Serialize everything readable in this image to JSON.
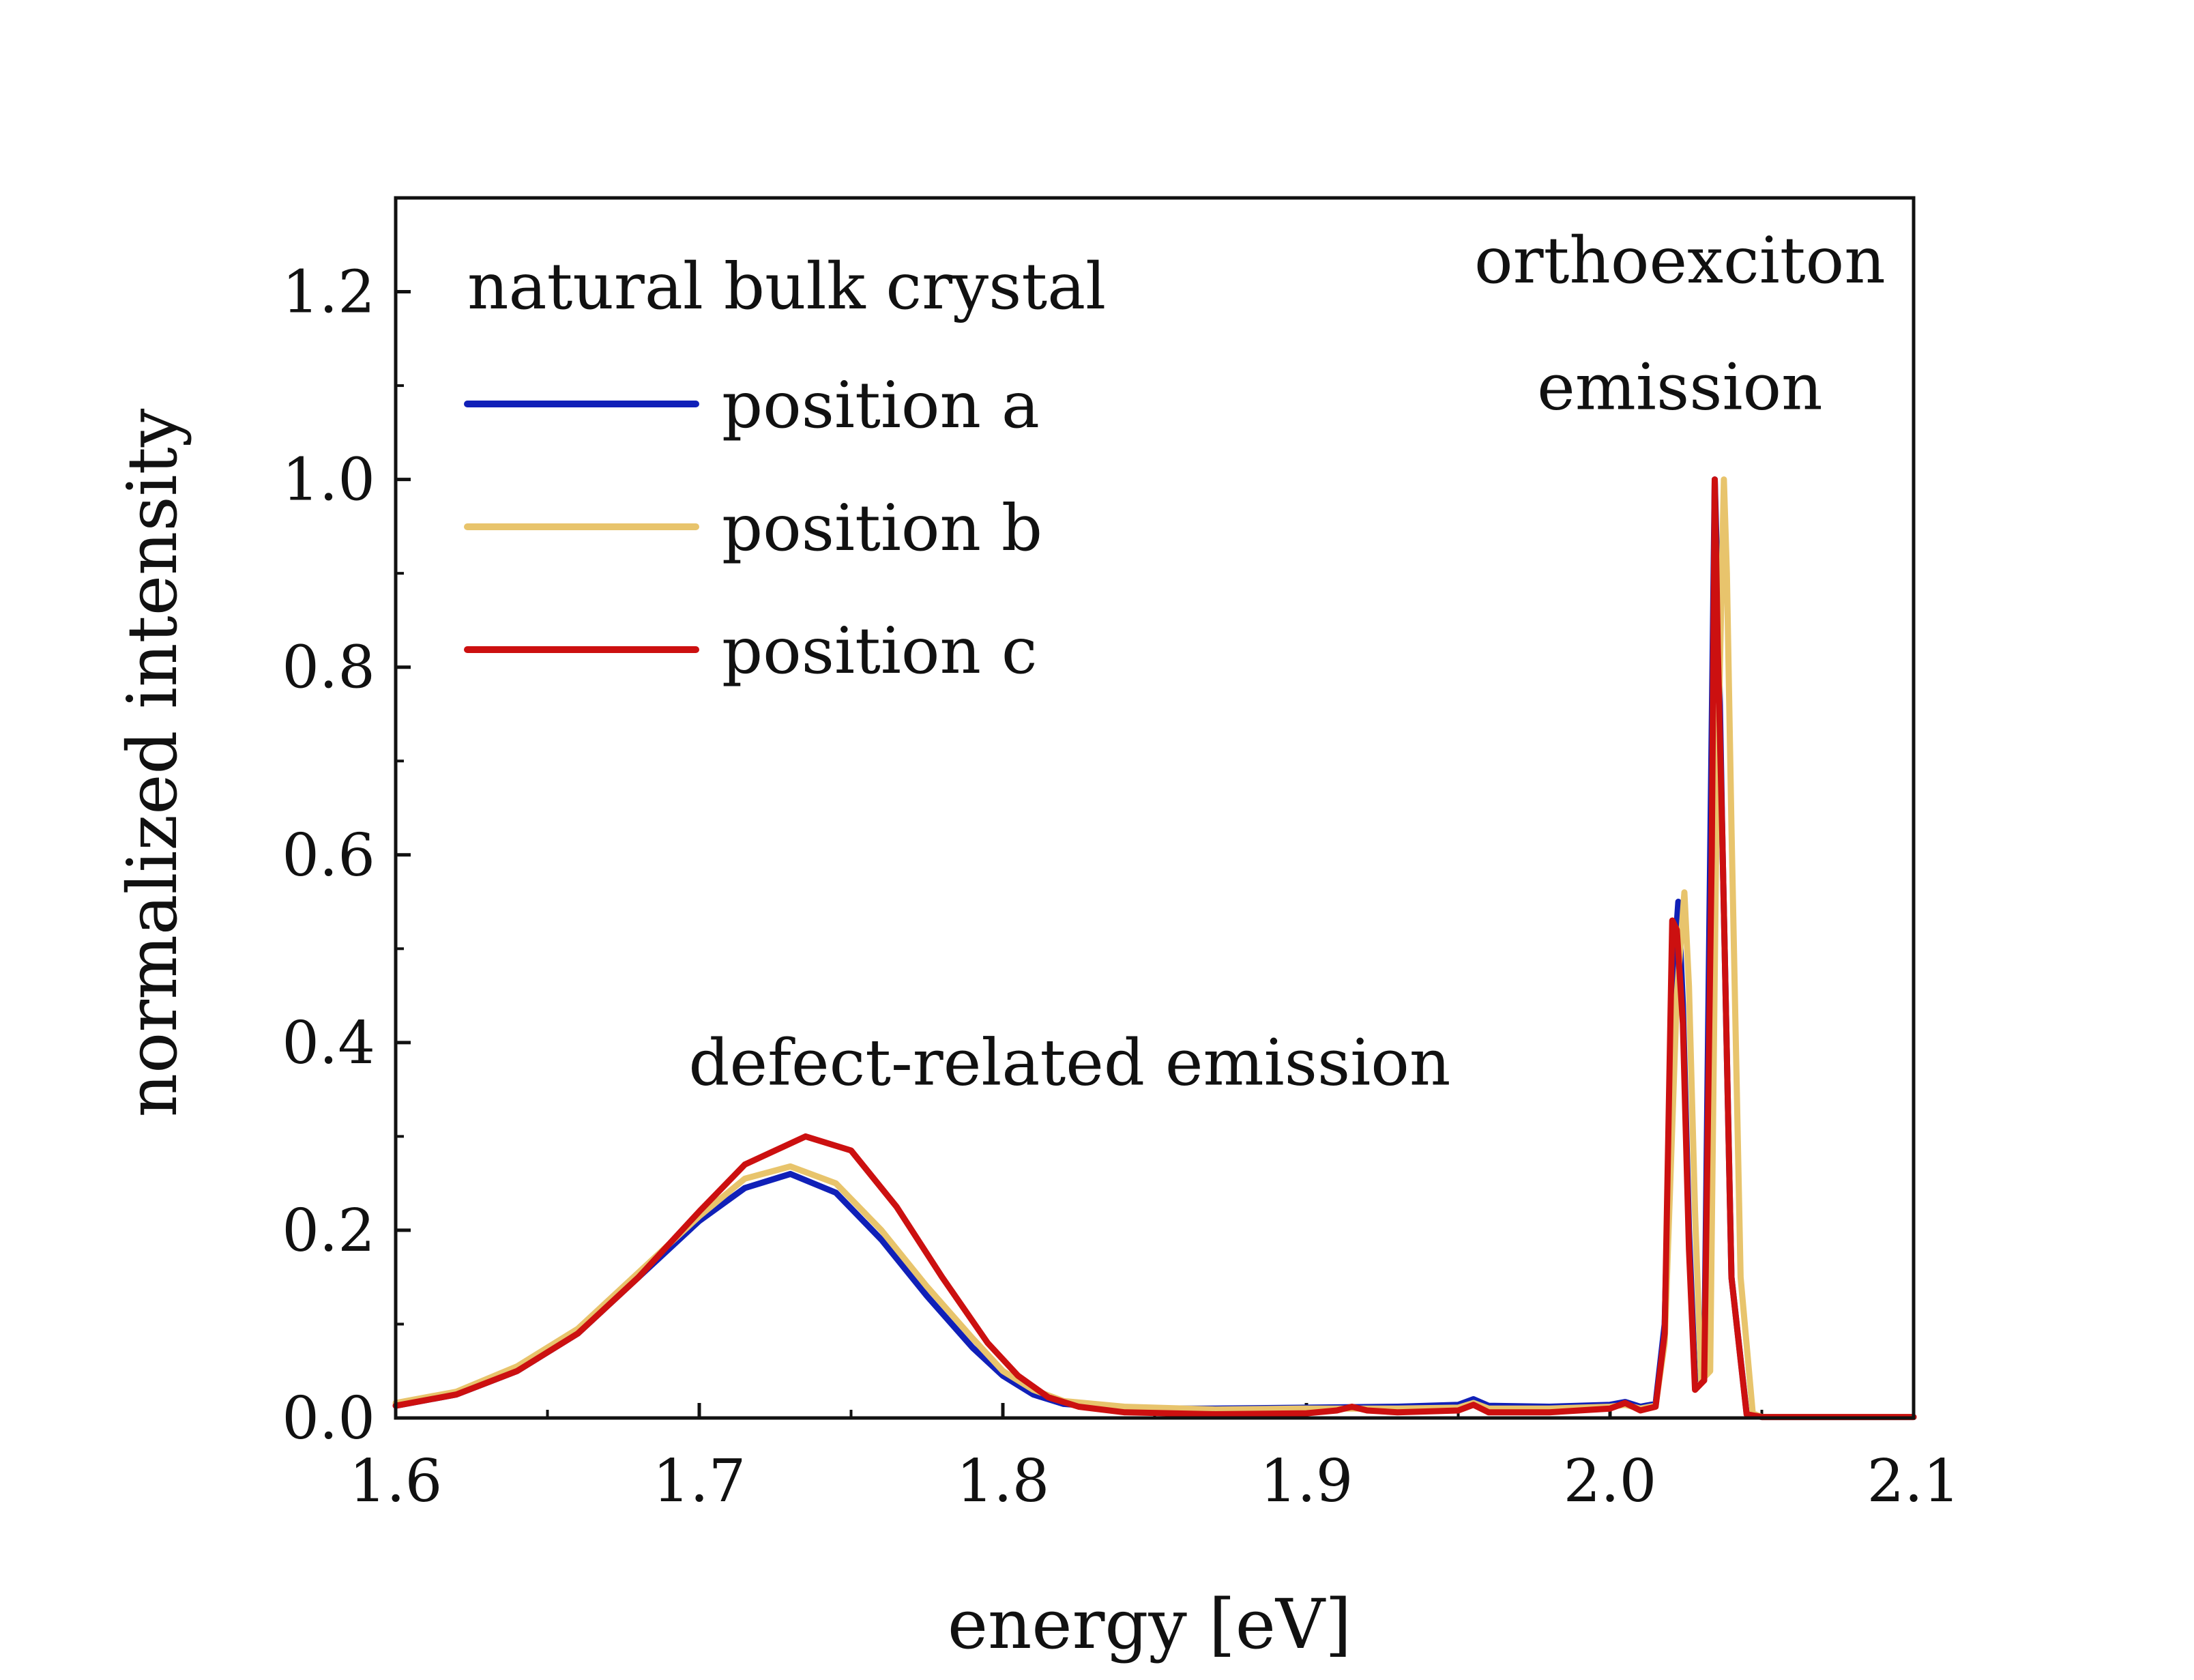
{
  "chart_data": {
    "type": "line",
    "title": "",
    "xlabel": "energy [eV]",
    "ylabel": "normalized intensity",
    "xlim": [
      1.6,
      2.1
    ],
    "ylim": [
      0.0,
      1.3
    ],
    "x_ticks": [
      "1.6",
      "1.7",
      "1.8",
      "1.9",
      "2.0",
      "2.1"
    ],
    "y_ticks": [
      "0.0",
      "0.2",
      "0.4",
      "0.6",
      "0.8",
      "1.0",
      "1.2"
    ],
    "legend_title": "natural bulk crystal",
    "legend_position": "top-left",
    "series": [
      {
        "name": "position a",
        "color": "#1020b8",
        "x": [
          1.6,
          1.62,
          1.64,
          1.66,
          1.68,
          1.7,
          1.715,
          1.73,
          1.745,
          1.76,
          1.775,
          1.79,
          1.8,
          1.81,
          1.82,
          1.84,
          1.87,
          1.9,
          1.93,
          1.95,
          1.955,
          1.96,
          1.98,
          2.0,
          2.005,
          2.01,
          2.015,
          2.018,
          2.021,
          2.0225,
          2.024,
          2.026,
          2.028,
          2.031,
          2.033,
          2.0345,
          2.0355,
          2.037,
          2.04,
          2.045,
          2.05,
          2.1
        ],
        "y": [
          0.013,
          0.025,
          0.05,
          0.09,
          0.15,
          0.21,
          0.245,
          0.26,
          0.24,
          0.19,
          0.13,
          0.075,
          0.045,
          0.025,
          0.015,
          0.01,
          0.01,
          0.011,
          0.012,
          0.014,
          0.02,
          0.013,
          0.012,
          0.014,
          0.017,
          0.012,
          0.015,
          0.1,
          0.48,
          0.55,
          0.44,
          0.2,
          0.04,
          0.05,
          0.6,
          1.0,
          0.88,
          0.62,
          0.15,
          0.005,
          0.001,
          0.001
        ]
      },
      {
        "name": "position b",
        "color": "#e8c46c",
        "x": [
          1.6,
          1.62,
          1.64,
          1.66,
          1.68,
          1.7,
          1.715,
          1.73,
          1.745,
          1.76,
          1.775,
          1.79,
          1.8,
          1.81,
          1.82,
          1.84,
          1.87,
          1.9,
          1.93,
          1.95,
          1.955,
          1.96,
          1.98,
          2.0,
          2.005,
          2.01,
          2.015,
          2.018,
          2.022,
          2.0245,
          2.026,
          2.028,
          2.03,
          2.033,
          2.035,
          2.0375,
          2.0385,
          2.04,
          2.043,
          2.047,
          2.05,
          2.1
        ],
        "y": [
          0.016,
          0.028,
          0.055,
          0.095,
          0.155,
          0.215,
          0.255,
          0.268,
          0.25,
          0.2,
          0.14,
          0.085,
          0.05,
          0.03,
          0.018,
          0.012,
          0.009,
          0.01,
          0.01,
          0.011,
          0.016,
          0.01,
          0.01,
          0.012,
          0.014,
          0.01,
          0.013,
          0.08,
          0.45,
          0.56,
          0.46,
          0.22,
          0.04,
          0.05,
          0.62,
          1.0,
          0.9,
          0.63,
          0.15,
          0.005,
          0.001,
          0.001
        ]
      },
      {
        "name": "position c",
        "color": "#cc1010",
        "x": [
          1.6,
          1.62,
          1.64,
          1.66,
          1.68,
          1.7,
          1.715,
          1.735,
          1.75,
          1.765,
          1.78,
          1.795,
          1.805,
          1.815,
          1.825,
          1.84,
          1.87,
          1.9,
          1.91,
          1.915,
          1.92,
          1.93,
          1.95,
          1.955,
          1.96,
          1.98,
          2.0,
          2.005,
          2.01,
          2.015,
          2.018,
          2.0205,
          2.022,
          2.024,
          2.026,
          2.028,
          2.031,
          2.0335,
          2.0345,
          2.0355,
          2.037,
          2.04,
          2.045,
          2.05,
          2.1
        ],
        "y": [
          0.013,
          0.025,
          0.05,
          0.09,
          0.15,
          0.22,
          0.27,
          0.3,
          0.285,
          0.225,
          0.15,
          0.08,
          0.045,
          0.022,
          0.012,
          0.006,
          0.004,
          0.005,
          0.008,
          0.012,
          0.008,
          0.006,
          0.008,
          0.014,
          0.006,
          0.006,
          0.01,
          0.016,
          0.008,
          0.012,
          0.09,
          0.53,
          0.52,
          0.42,
          0.18,
          0.03,
          0.04,
          0.6,
          1.0,
          0.82,
          0.62,
          0.15,
          0.004,
          0.001,
          0.001
        ]
      }
    ],
    "annotations": [
      {
        "text": "defect-related emission",
        "x": 1.822,
        "y": 0.355
      },
      {
        "text": "orthoexciton",
        "x": 2.023,
        "y": 1.21
      },
      {
        "text": "emission",
        "x": 2.023,
        "y": 1.075
      }
    ]
  }
}
